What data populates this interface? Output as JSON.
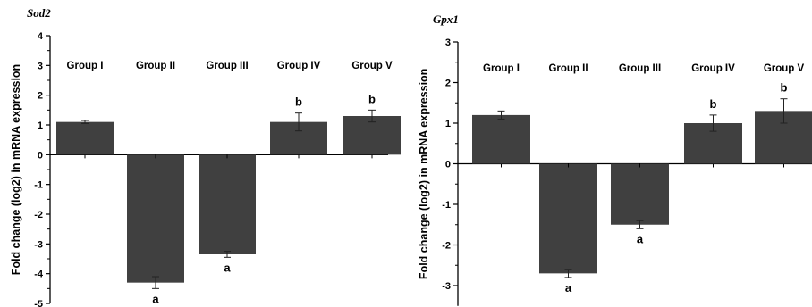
{
  "chart_data": [
    {
      "type": "bar",
      "title": "Sod2",
      "ylabel": "Fold change (log2) in mRNA expression",
      "xlabel": "",
      "categories": [
        "Group I",
        "Group II",
        "Group III",
        "Group IV",
        "Group V"
      ],
      "values": [
        1.1,
        -4.3,
        -3.35,
        1.1,
        1.3
      ],
      "errors": [
        0.05,
        0.2,
        0.1,
        0.3,
        0.2
      ],
      "annotations": [
        "",
        "a",
        "a",
        "b",
        "b"
      ],
      "ylim": [
        -5,
        4
      ],
      "yticks": [
        -5,
        -4,
        -3,
        -2,
        -1,
        0,
        1,
        2,
        3,
        4
      ],
      "bar_color": "#404040"
    },
    {
      "type": "bar",
      "title": "Gpx1",
      "ylabel": "Fold change (log2) in mRNA expression",
      "xlabel": "",
      "categories": [
        "Group I",
        "Group II",
        "Group III",
        "Group IV",
        "Group V"
      ],
      "values": [
        1.2,
        -2.7,
        -1.5,
        1.0,
        1.3
      ],
      "errors": [
        0.1,
        0.1,
        0.1,
        0.2,
        0.3
      ],
      "annotations": [
        "",
        "a",
        "a",
        "b",
        "b"
      ],
      "ylim": [
        -3.5,
        3
      ],
      "yticks": [
        -3,
        -2,
        -1,
        0,
        1,
        2,
        3
      ],
      "bar_color": "#404040"
    }
  ]
}
